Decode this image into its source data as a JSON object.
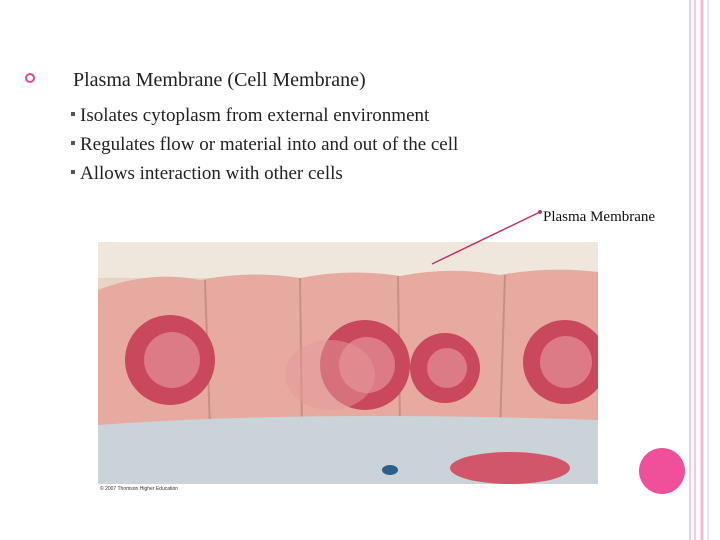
{
  "title": "Plasma Membrane (Cell Membrane)",
  "bullets": [
    "Isolates cytoplasm from external environment",
    "Regulates flow or material into and out of the cell",
    "Allows interaction with other cells"
  ],
  "callout_label": "Plasma Membrane",
  "image_credit": "© 2007 Thomson Higher Education"
}
